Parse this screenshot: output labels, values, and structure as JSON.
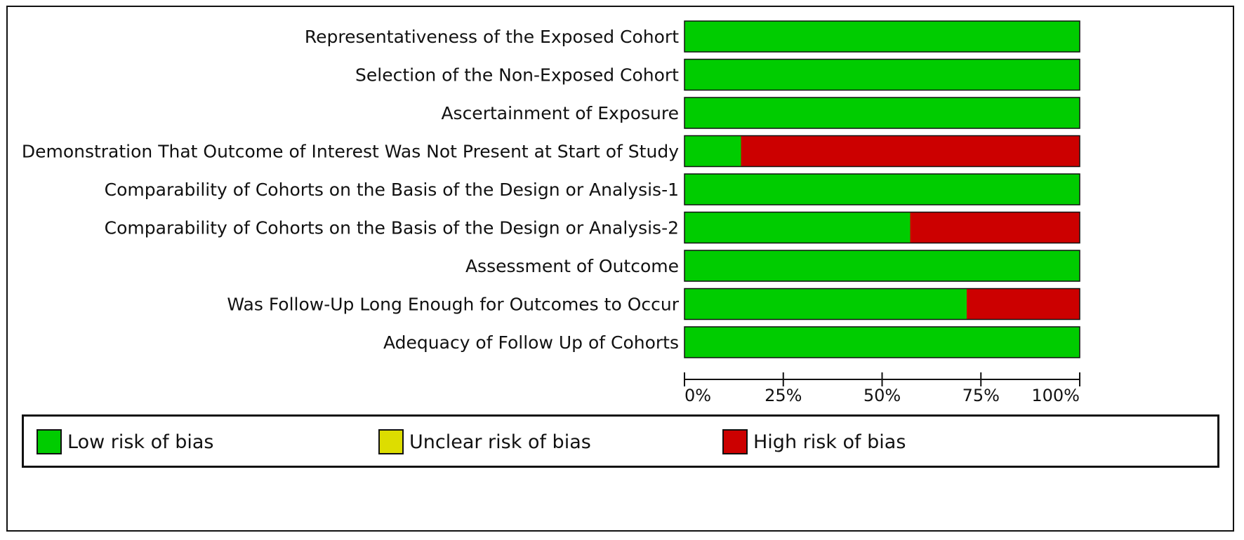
{
  "chart_data": {
    "type": "bar",
    "orientation": "horizontal",
    "stacked": true,
    "categories": [
      "Representativeness of the Exposed Cohort",
      "Selection of the Non-Exposed Cohort",
      "Ascertainment of Exposure",
      "Demonstration That Outcome of Interest Was Not Present at Start of Study",
      "Comparability of Cohorts on the Basis of the Design or Analysis-1",
      "Comparability of Cohorts on the Basis of the Design or Analysis-2",
      "Assessment of Outcome",
      "Was Follow-Up Long Enough for Outcomes to Occur",
      "Adequacy of Follow Up of Cohorts"
    ],
    "series": [
      {
        "name": "Low risk of bias",
        "color": "#00cc00",
        "values": [
          100,
          100,
          100,
          14.3,
          100,
          57.1,
          100,
          71.4,
          100
        ]
      },
      {
        "name": "Unclear risk of bias",
        "color": "#dddd00",
        "values": [
          0,
          0,
          0,
          0,
          0,
          0,
          0,
          0,
          0
        ]
      },
      {
        "name": "High risk of bias",
        "color": "#cc0000",
        "values": [
          0,
          0,
          0,
          85.7,
          0,
          42.9,
          0,
          28.6,
          0
        ]
      }
    ],
    "xlim": [
      0,
      100
    ],
    "xticks": [
      0,
      25,
      50,
      75,
      100
    ],
    "xtick_labels": [
      "0%",
      "25%",
      "50%",
      "75%",
      "100%"
    ],
    "grid": false,
    "legend_position": "bottom"
  }
}
